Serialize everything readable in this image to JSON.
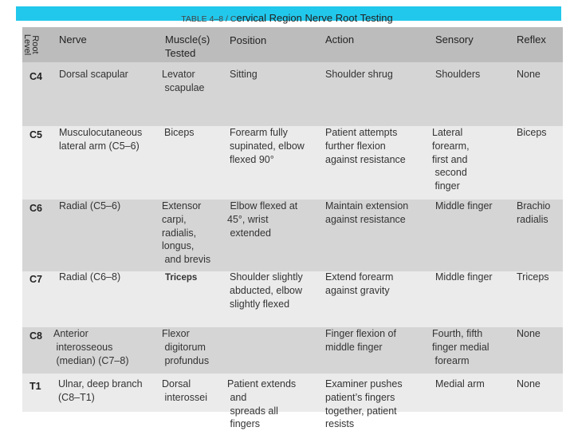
{
  "caption": {
    "prefix": "TABLE 4–8 / C",
    "title": "ervical Region Nerve Root Testing"
  },
  "header": {
    "root_level": "Root\nLevel",
    "nerve": "Nerve",
    "muscles": "Muscle(s)\nTested",
    "position": "Position",
    "action": "Action",
    "sensory": "Sensory",
    "reflex": "Reflex"
  },
  "rows": [
    {
      "root": "C4",
      "nerve": "Dorsal scapular",
      "muscles": "Levator\n scapulae",
      "position": "Sitting",
      "action": "Shoulder shrug",
      "sensory": "Shoulders",
      "reflex": "None"
    },
    {
      "root": "C5",
      "nerve": "Musculocutaneous\nlateral arm (C5–6)",
      "muscles": "Biceps",
      "position": "Forearm fully\nsupinated, elbow\nflexed 90°",
      "action": "Patient attempts\nfurther flexion\nagainst resistance",
      "sensory": "Lateral\nforearm,\nfirst and\n second\n finger",
      "reflex": "Biceps"
    },
    {
      "root": "C6",
      "nerve": "Radial (C5–6)",
      "muscles": "Extensor\ncarpi,\nradialis,\nlongus,\n and brevis",
      "position": " Elbow flexed at\n45°, wrist\n extended",
      "action": "Maintain extension\nagainst resistance",
      "sensory": "Middle finger",
      "reflex": "Brachio\nradialis"
    },
    {
      "root": "C7",
      "nerve": "Radial (C6–8)",
      "muscles": "Triceps",
      "position": "Shoulder slightly\nabducted, elbow\nslightly flexed",
      "action": "Extend forearm\nagainst gravity",
      "sensory": "Middle finger",
      "reflex": "Triceps"
    },
    {
      "root": "C8",
      "nerve": "Anterior\n interosseous\n (median) (C7–8)",
      "muscles": "Flexor\n digitorum\n profundus",
      "position": "",
      "action": "Finger flexion of\nmiddle finger",
      "sensory": "Fourth, fifth\nfinger medial\n forearm",
      "reflex": "None"
    },
    {
      "root": "T1",
      "nerve": "Ulnar, deep branch\n(C8–T1)",
      "muscles": "Dorsal\n interossei",
      "position": "Patient extends\n and\n spreads all\n fingers",
      "action": "Examiner pushes\npatient’s fingers\ntogether, patient\nresists",
      "sensory": "Medial arm",
      "reflex": "None"
    }
  ]
}
